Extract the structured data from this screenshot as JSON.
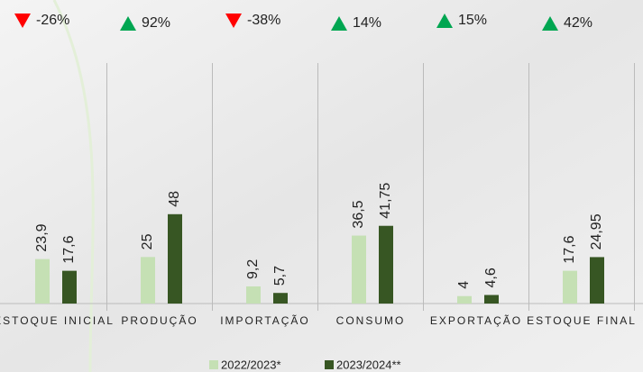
{
  "chart_data": {
    "type": "bar",
    "categories": [
      "ESTOQUE INICIAL",
      "PRODUÇÃO",
      "IMPORTAÇÃO",
      "CONSUMO",
      "EXPORTAÇÃO",
      "ESTOQUE FINAL"
    ],
    "series": [
      {
        "name": "2022/2023*",
        "color": "#c5e0b4",
        "values": [
          23.9,
          25,
          9.2,
          36.5,
          4,
          17.6
        ],
        "value_labels": [
          "23,9",
          "25",
          "9,2",
          "36,5",
          "4",
          "17,6"
        ]
      },
      {
        "name": "2023/2024**",
        "color": "#375623",
        "values": [
          17.6,
          48,
          5.7,
          41.75,
          4.6,
          24.95
        ],
        "value_labels": [
          "17,6",
          "48",
          "5,7",
          "41,75",
          "4,6",
          "24,95"
        ]
      }
    ],
    "changes": {
      "values": [
        -26,
        92,
        -38,
        14,
        15,
        42
      ],
      "labels": [
        "-26%",
        "92%",
        "-38%",
        "14%",
        "15%",
        "42%"
      ],
      "up_color": "#00a651",
      "down_color": "#ff0000"
    },
    "ylim": [
      0,
      60
    ],
    "legend": "bottom"
  }
}
